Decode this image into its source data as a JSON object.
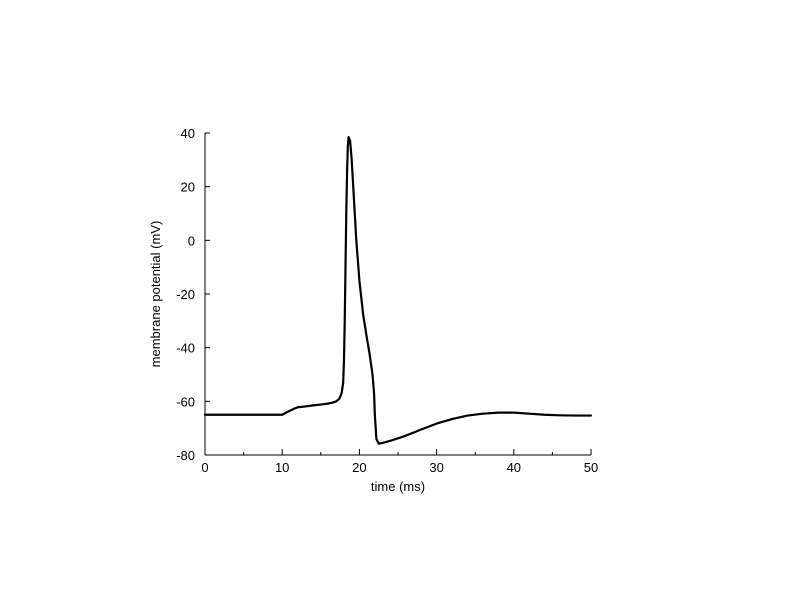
{
  "chart_data": {
    "type": "line",
    "xlabel": "time (ms)",
    "ylabel": "membrane potential (mV)",
    "xlim": [
      0,
      50
    ],
    "ylim": [
      -80,
      40
    ],
    "xticks": [
      0,
      10,
      20,
      30,
      40,
      50
    ],
    "xtick_labels": [
      "0",
      "10",
      "20",
      "30",
      "40",
      "50"
    ],
    "yticks": [
      -80,
      -60,
      -40,
      -20,
      0,
      20,
      40
    ],
    "ytick_labels": [
      "-80",
      "-60",
      "-40",
      "-20",
      "0",
      "20",
      "40"
    ],
    "x_minor_tick_step": 5,
    "grid": false,
    "line_color": "#000000",
    "series": [
      {
        "x": [
          0,
          5,
          10,
          10.5,
          11,
          11.5,
          12,
          13,
          14,
          15,
          16,
          16.5,
          17,
          17.4,
          17.7,
          17.9,
          18.0,
          18.1,
          18.2,
          18.3,
          18.4,
          18.5,
          18.6,
          18.8,
          19.0,
          19.3,
          19.6,
          20.0,
          20.5,
          21.0,
          21.3,
          21.5,
          21.7,
          21.9,
          22.0,
          22.2,
          22.5,
          23,
          24,
          25,
          26,
          28,
          30,
          32,
          34,
          36,
          38,
          40,
          42,
          44,
          46,
          48,
          50
        ],
        "y": [
          -65,
          -65,
          -65,
          -64.2,
          -63.5,
          -62.8,
          -62.2,
          -61.9,
          -61.5,
          -61.2,
          -60.8,
          -60.5,
          -60.0,
          -59.0,
          -57.0,
          -53.0,
          -45.0,
          -30.0,
          -10.0,
          10.0,
          25.0,
          35.0,
          38.5,
          37.0,
          30.0,
          15.0,
          0.0,
          -15.0,
          -28.0,
          -37.0,
          -42.0,
          -46.0,
          -50.0,
          -57.0,
          -65.0,
          -74.0,
          -75.8,
          -75.5,
          -74.7,
          -73.8,
          -72.8,
          -70.5,
          -68.3,
          -66.6,
          -65.3,
          -64.6,
          -64.2,
          -64.2,
          -64.6,
          -65.0,
          -65.2,
          -65.3,
          -65.3
        ]
      }
    ]
  }
}
